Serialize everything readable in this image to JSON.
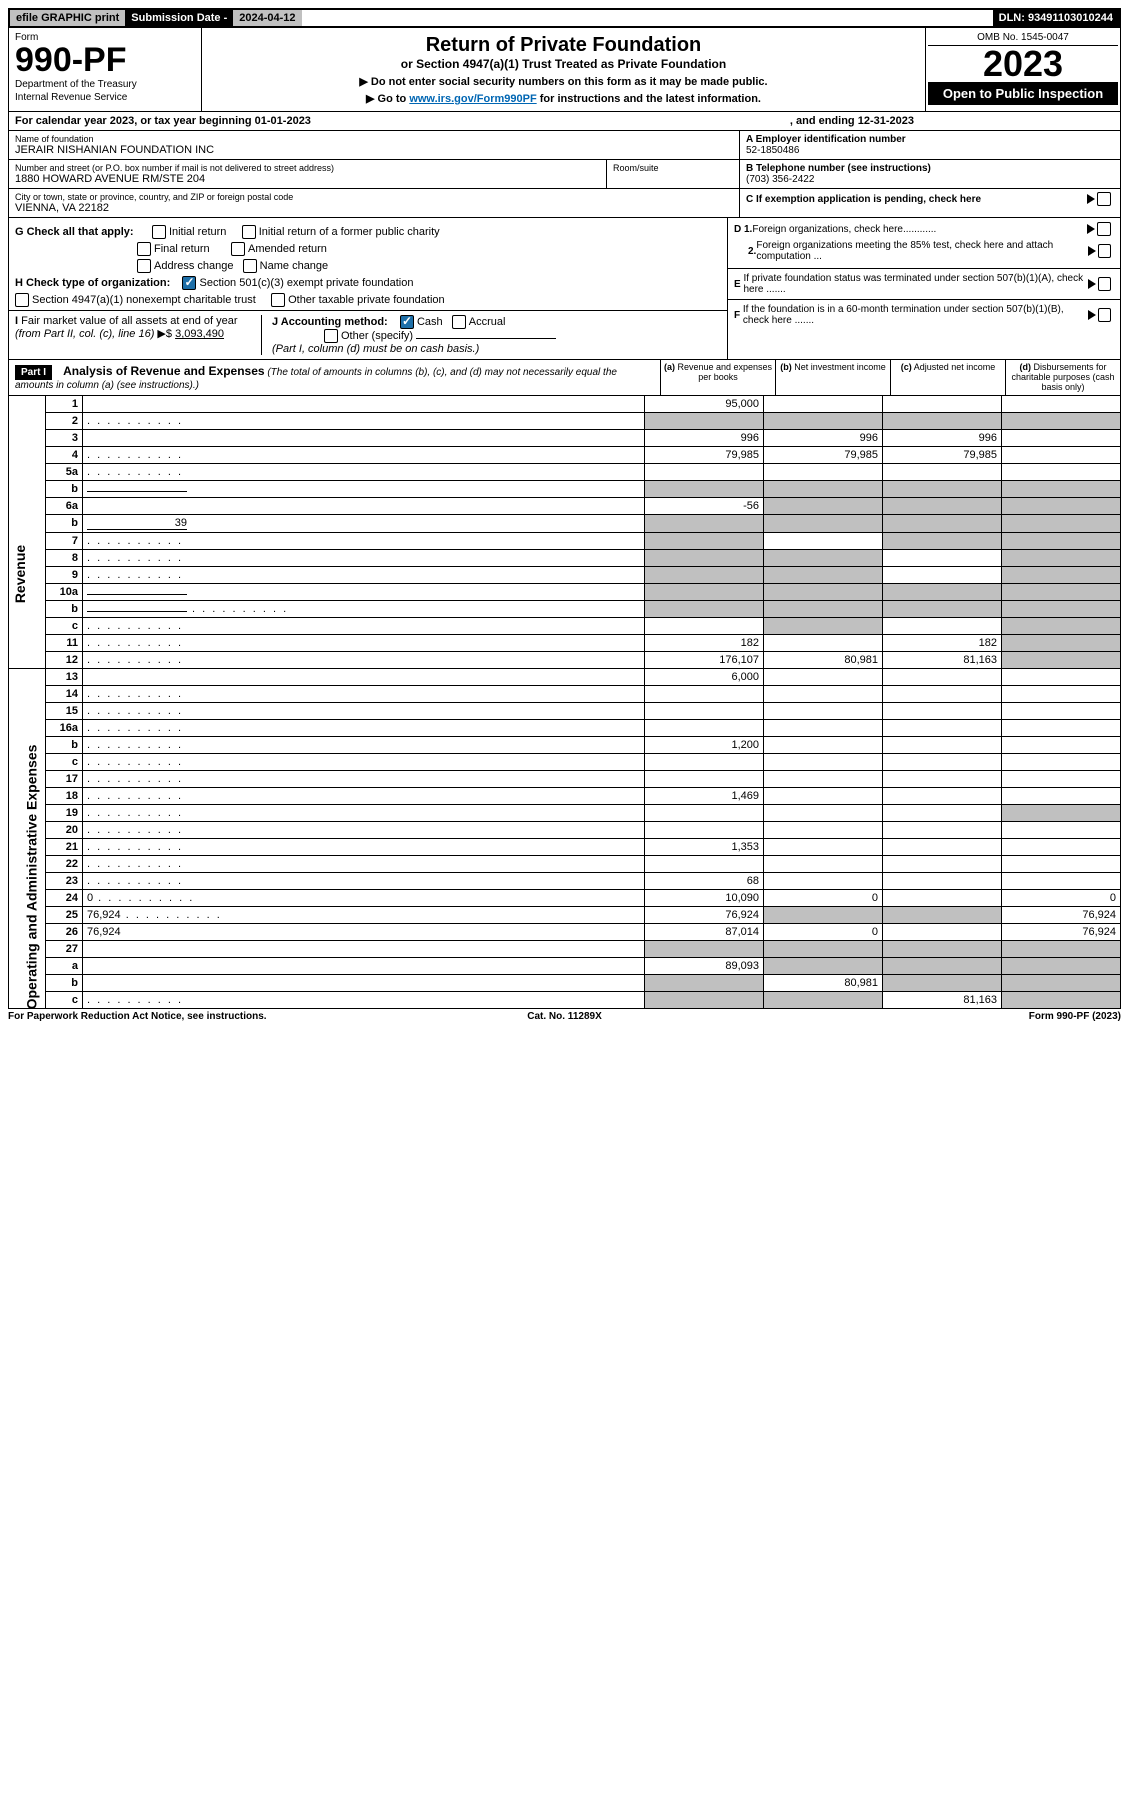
{
  "top": {
    "efile": "efile GRAPHIC print",
    "sub_label": "Submission Date - ",
    "sub_date": "2024-04-12",
    "dln": "DLN: 93491103010244"
  },
  "header": {
    "form_label": "Form",
    "form_no": "990-PF",
    "dept1": "Department of the Treasury",
    "dept2": "Internal Revenue Service",
    "title": "Return of Private Foundation",
    "subtitle": "or Section 4947(a)(1) Trust Treated as Private Foundation",
    "note1": "▶ Do not enter social security numbers on this form as it may be made public.",
    "note2_pre": "▶ Go to ",
    "note2_link": "www.irs.gov/Form990PF",
    "note2_post": " for instructions and the latest information.",
    "omb": "OMB No. 1545-0047",
    "year": "2023",
    "open": "Open to Public Inspection"
  },
  "cal": {
    "pre": "For calendar year 2023, or tax year beginning ",
    "begin": "01-01-2023",
    "end_pre": ", and ending ",
    "end": "12-31-2023"
  },
  "entity": {
    "name_label": "Name of foundation",
    "name": "JERAIR NISHANIAN FOUNDATION INC",
    "addr_label": "Number and street (or P.O. box number if mail is not delivered to street address)",
    "addr": "1880 HOWARD AVENUE RM/STE 204",
    "room_label": "Room/suite",
    "city_label": "City or town, state or province, country, and ZIP or foreign postal code",
    "city": "VIENNA, VA  22182",
    "a_label": "A Employer identification number",
    "a_val": "52-1850486",
    "b_label": "B Telephone number (see instructions)",
    "b_val": "(703) 356-2422",
    "c_label": "C If exemption application is pending, check here"
  },
  "checks": {
    "g": "G Check all that apply:",
    "g_opts": [
      "Initial return",
      "Initial return of a former public charity",
      "Final return",
      "Amended return",
      "Address change",
      "Name change"
    ],
    "h": "H Check type of organization:",
    "h_opt1": "Section 501(c)(3) exempt private foundation",
    "h_opt2": "Section 4947(a)(1) nonexempt charitable trust",
    "h_opt3": "Other taxable private foundation",
    "i_pre": "I Fair market value of all assets at end of year (from Part II, col. (c), line 16) ▶$ ",
    "i_val": "3,093,490",
    "j": "J Accounting method:",
    "j_cash": "Cash",
    "j_accrual": "Accrual",
    "j_other": "Other (specify)",
    "j_note": "(Part I, column (d) must be on cash basis.)",
    "d1": "D 1. Foreign organizations, check here............",
    "d2": "2. Foreign organizations meeting the 85% test, check here and attach computation ...",
    "e": "E  If private foundation status was terminated under section 507(b)(1)(A), check here .......",
    "f": "F  If the foundation is in a 60-month termination under section 507(b)(1)(B), check here .......",
    "arrow": "▶"
  },
  "part1": {
    "label": "Part I",
    "title": "Analysis of Revenue and Expenses",
    "note": " (The total of amounts in columns (b), (c), and (d) may not necessarily equal the amounts in column (a) (see instructions).)",
    "col_a": "(a)  Revenue and expenses per books",
    "col_b": "(b)  Net investment income",
    "col_c": "(c)  Adjusted net income",
    "col_d": "(d)  Disbursements for charitable purposes (cash basis only)"
  },
  "side_labels": {
    "revenue": "Revenue",
    "expenses": "Operating and Administrative Expenses"
  },
  "rows": [
    {
      "n": "1",
      "d": "",
      "a": "95,000",
      "b": "",
      "c": "",
      "greyd": false
    },
    {
      "n": "2",
      "d": "",
      "a": "",
      "b": "",
      "c": "",
      "greya": true,
      "greyb": true,
      "greyc": true,
      "greyd": true,
      "dots": true
    },
    {
      "n": "3",
      "d": "",
      "a": "996",
      "b": "996",
      "c": "996"
    },
    {
      "n": "4",
      "d": "",
      "a": "79,985",
      "b": "79,985",
      "c": "79,985",
      "dots": true
    },
    {
      "n": "5a",
      "d": "",
      "a": "",
      "b": "",
      "c": "",
      "dots": true
    },
    {
      "n": "b",
      "d": "",
      "a": "",
      "b": "",
      "c": "",
      "greya": true,
      "greyb": true,
      "greyc": true,
      "greyd": true,
      "inline": true
    },
    {
      "n": "6a",
      "d": "",
      "a": "-56",
      "b": "",
      "c": "",
      "greyb": true,
      "greyc": true,
      "greyd": true
    },
    {
      "n": "b",
      "d": "",
      "a": "",
      "b": "",
      "c": "",
      "greya": true,
      "greyb": true,
      "greyc": true,
      "greyd": true,
      "inline_val": "39"
    },
    {
      "n": "7",
      "d": "",
      "a": "",
      "b": "",
      "c": "",
      "greya": true,
      "greyc": true,
      "greyd": true,
      "dots": true
    },
    {
      "n": "8",
      "d": "",
      "a": "",
      "b": "",
      "c": "",
      "greya": true,
      "greyb": true,
      "greyd": true,
      "dots": true
    },
    {
      "n": "9",
      "d": "",
      "a": "",
      "b": "",
      "c": "",
      "greya": true,
      "greyb": true,
      "greyd": true,
      "dots": true
    },
    {
      "n": "10a",
      "d": "",
      "a": "",
      "b": "",
      "c": "",
      "greya": true,
      "greyb": true,
      "greyc": true,
      "greyd": true,
      "inline": true
    },
    {
      "n": "b",
      "d": "",
      "a": "",
      "b": "",
      "c": "",
      "greya": true,
      "greyb": true,
      "greyc": true,
      "greyd": true,
      "inline": true,
      "dots": true
    },
    {
      "n": "c",
      "d": "",
      "a": "",
      "b": "",
      "c": "",
      "greyb": true,
      "greyd": true,
      "dots": true
    },
    {
      "n": "11",
      "d": "",
      "a": "182",
      "b": "",
      "c": "182",
      "greyd": true,
      "dots": true
    },
    {
      "n": "12",
      "d": "",
      "a": "176,107",
      "b": "80,981",
      "c": "81,163",
      "greyd": true,
      "dots": true
    },
    {
      "n": "13",
      "d": "",
      "a": "6,000",
      "b": "",
      "c": ""
    },
    {
      "n": "14",
      "d": "",
      "a": "",
      "b": "",
      "c": "",
      "dots": true
    },
    {
      "n": "15",
      "d": "",
      "a": "",
      "b": "",
      "c": "",
      "dots": true
    },
    {
      "n": "16a",
      "d": "",
      "a": "",
      "b": "",
      "c": "",
      "dots": true
    },
    {
      "n": "b",
      "d": "",
      "a": "1,200",
      "b": "",
      "c": "",
      "dots": true
    },
    {
      "n": "c",
      "d": "",
      "a": "",
      "b": "",
      "c": "",
      "dots": true
    },
    {
      "n": "17",
      "d": "",
      "a": "",
      "b": "",
      "c": "",
      "dots": true
    },
    {
      "n": "18",
      "d": "",
      "a": "1,469",
      "b": "",
      "c": "",
      "dots": true
    },
    {
      "n": "19",
      "d": "",
      "a": "",
      "b": "",
      "c": "",
      "greyd": true,
      "dots": true
    },
    {
      "n": "20",
      "d": "",
      "a": "",
      "b": "",
      "c": "",
      "dots": true
    },
    {
      "n": "21",
      "d": "",
      "a": "1,353",
      "b": "",
      "c": "",
      "dots": true
    },
    {
      "n": "22",
      "d": "",
      "a": "",
      "b": "",
      "c": "",
      "dots": true
    },
    {
      "n": "23",
      "d": "",
      "a": "68",
      "b": "",
      "c": "",
      "dots": true
    },
    {
      "n": "24",
      "d": "0",
      "a": "10,090",
      "b": "0",
      "c": "",
      "dots": true
    },
    {
      "n": "25",
      "d": "76,924",
      "a": "76,924",
      "b": "",
      "c": "",
      "greyb": true,
      "greyc": true,
      "dots": true
    },
    {
      "n": "26",
      "d": "76,924",
      "a": "87,014",
      "b": "0",
      "c": ""
    },
    {
      "n": "27",
      "d": "",
      "a": "",
      "b": "",
      "c": "",
      "greya": true,
      "greyb": true,
      "greyc": true,
      "greyd": true
    },
    {
      "n": "a",
      "d": "",
      "a": "89,093",
      "b": "",
      "c": "",
      "greyb": true,
      "greyc": true,
      "greyd": true
    },
    {
      "n": "b",
      "d": "",
      "a": "",
      "b": "80,981",
      "c": "",
      "greya": true,
      "greyc": true,
      "greyd": true
    },
    {
      "n": "c",
      "d": "",
      "a": "",
      "b": "",
      "c": "81,163",
      "greya": true,
      "greyb": true,
      "greyd": true,
      "dots": true
    }
  ],
  "footer": {
    "left": "For Paperwork Reduction Act Notice, see instructions.",
    "center": "Cat. No. 11289X",
    "right": "Form 990-PF (2023)"
  },
  "colors": {
    "grey": "#c0c0c0",
    "black": "#000000",
    "link": "#0066b3",
    "check_blue": "#1e6fa8"
  }
}
